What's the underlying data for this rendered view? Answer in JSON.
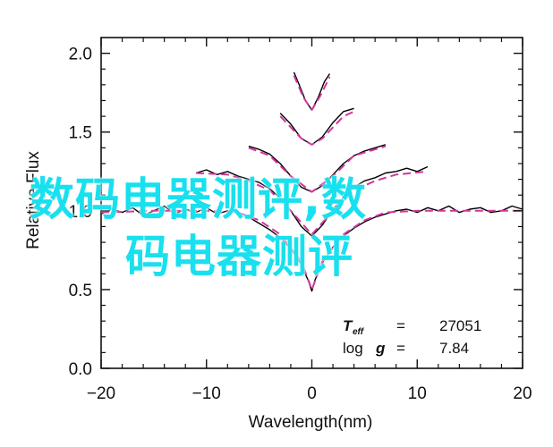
{
  "chart_data": {
    "type": "line",
    "xlabel": "Wavelength(nm)",
    "ylabel": "Relative Flux",
    "xlim": [
      -20,
      20
    ],
    "ylim": [
      0,
      2.1
    ],
    "xticks": [
      "−20",
      "−10",
      "0",
      "10",
      "20"
    ],
    "yticks": [
      "0.0",
      "0.5",
      "1.0",
      "1.5",
      "2.0"
    ],
    "grid": false,
    "annotations": {
      "teff_label": "T",
      "teff_sub": "eff",
      "teff_eq": "=",
      "teff_value": "27051",
      "logg_label": "log",
      "logg_g": "g",
      "logg_eq": "=",
      "logg_value": "7.84"
    },
    "series": [
      {
        "style": "solid",
        "color": "#000000",
        "segments": [
          [
            [
              -20,
              0.98
            ],
            [
              -19,
              1.01
            ],
            [
              -18,
              0.99
            ],
            [
              -17,
              1.02
            ],
            [
              -16,
              0.97
            ],
            [
              -15,
              1.0
            ],
            [
              -14,
              1.03
            ],
            [
              -13,
              0.98
            ],
            [
              -12,
              1.01
            ],
            [
              -11,
              0.99
            ],
            [
              -10,
              1.02
            ],
            [
              -9,
              0.98
            ],
            [
              -8,
              1.0
            ],
            [
              -7,
              0.99
            ],
            [
              -6,
              0.96
            ],
            [
              -5,
              0.92
            ],
            [
              -4,
              0.88
            ],
            [
              -3,
              0.83
            ],
            [
              -2,
              0.76
            ],
            [
              -1,
              0.66
            ],
            [
              -0.3,
              0.55
            ],
            [
              0,
              0.49
            ],
            [
              0.3,
              0.56
            ],
            [
              1,
              0.67
            ],
            [
              2,
              0.77
            ],
            [
              3,
              0.84
            ],
            [
              4,
              0.89
            ],
            [
              5,
              0.93
            ],
            [
              6,
              0.96
            ],
            [
              7,
              0.98
            ],
            [
              8,
              1.0
            ],
            [
              9,
              1.01
            ],
            [
              10,
              0.99
            ],
            [
              11,
              1.02
            ],
            [
              12,
              1.0
            ],
            [
              13,
              1.03
            ],
            [
              14,
              0.99
            ],
            [
              15,
              1.01
            ],
            [
              16,
              1.02
            ],
            [
              17,
              0.99
            ],
            [
              18,
              1.0
            ],
            [
              19,
              1.03
            ],
            [
              20,
              1.01
            ]
          ],
          [
            [
              -11,
              1.24
            ],
            [
              -10,
              1.26
            ],
            [
              -9,
              1.23
            ],
            [
              -8,
              1.25
            ],
            [
              -7,
              1.22
            ],
            [
              -6,
              1.2
            ],
            [
              -5,
              1.18
            ],
            [
              -4,
              1.14
            ],
            [
              -3,
              1.08
            ],
            [
              -2,
              1.0
            ],
            [
              -1,
              0.9
            ],
            [
              0,
              0.84
            ],
            [
              1,
              0.91
            ],
            [
              2,
              1.01
            ],
            [
              3,
              1.08
            ],
            [
              4,
              1.15
            ],
            [
              5,
              1.19
            ],
            [
              6,
              1.21
            ],
            [
              7,
              1.24
            ],
            [
              8,
              1.25
            ],
            [
              9,
              1.27
            ],
            [
              10,
              1.25
            ],
            [
              11,
              1.28
            ]
          ],
          [
            [
              -6,
              1.41
            ],
            [
              -5,
              1.39
            ],
            [
              -4,
              1.36
            ],
            [
              -3,
              1.3
            ],
            [
              -2,
              1.22
            ],
            [
              -1,
              1.15
            ],
            [
              0,
              1.12
            ],
            [
              1,
              1.16
            ],
            [
              2,
              1.23
            ],
            [
              3,
              1.3
            ],
            [
              4,
              1.35
            ],
            [
              5,
              1.38
            ],
            [
              6,
              1.4
            ],
            [
              7,
              1.42
            ]
          ],
          [
            [
              -3,
              1.62
            ],
            [
              -2,
              1.55
            ],
            [
              -1,
              1.46
            ],
            [
              0,
              1.42
            ],
            [
              1,
              1.47
            ],
            [
              2,
              1.56
            ],
            [
              3,
              1.63
            ],
            [
              4,
              1.65
            ]
          ],
          [
            [
              -1.7,
              1.88
            ],
            [
              -1.2,
              1.8
            ],
            [
              -0.6,
              1.7
            ],
            [
              0,
              1.64
            ],
            [
              0.6,
              1.72
            ],
            [
              1.2,
              1.82
            ],
            [
              1.7,
              1.87
            ]
          ]
        ]
      },
      {
        "style": "dashed",
        "color": "#d3359d",
        "segments": [
          [
            [
              -20,
              0.99
            ],
            [
              -15,
              1.0
            ],
            [
              -10,
              1.0
            ],
            [
              -7,
              0.99
            ],
            [
              -5,
              0.94
            ],
            [
              -3,
              0.85
            ],
            [
              -1,
              0.68
            ],
            [
              0,
              0.5
            ],
            [
              1,
              0.68
            ],
            [
              3,
              0.85
            ],
            [
              5,
              0.94
            ],
            [
              7,
              0.99
            ],
            [
              10,
              1.0
            ],
            [
              15,
              1.0
            ],
            [
              20,
              1.0
            ]
          ],
          [
            [
              -11,
              1.24
            ],
            [
              -8,
              1.23
            ],
            [
              -6,
              1.19
            ],
            [
              -4,
              1.13
            ],
            [
              -2,
              1.0
            ],
            [
              0,
              0.85
            ],
            [
              2,
              1.0
            ],
            [
              4,
              1.13
            ],
            [
              6,
              1.19
            ],
            [
              8,
              1.23
            ],
            [
              11,
              1.25
            ]
          ],
          [
            [
              -6,
              1.4
            ],
            [
              -4,
              1.35
            ],
            [
              -2,
              1.22
            ],
            [
              0,
              1.12
            ],
            [
              2,
              1.22
            ],
            [
              4,
              1.35
            ],
            [
              7,
              1.41
            ]
          ],
          [
            [
              -3,
              1.6
            ],
            [
              -1,
              1.46
            ],
            [
              0,
              1.42
            ],
            [
              1,
              1.46
            ],
            [
              3,
              1.6
            ],
            [
              4,
              1.63
            ]
          ],
          [
            [
              -1.7,
              1.86
            ],
            [
              -0.8,
              1.72
            ],
            [
              0,
              1.64
            ],
            [
              0.8,
              1.73
            ],
            [
              1.7,
              1.85
            ]
          ]
        ]
      }
    ]
  },
  "overlay": {
    "line1": "数码电器测评,数",
    "line2": "码电器测评"
  }
}
